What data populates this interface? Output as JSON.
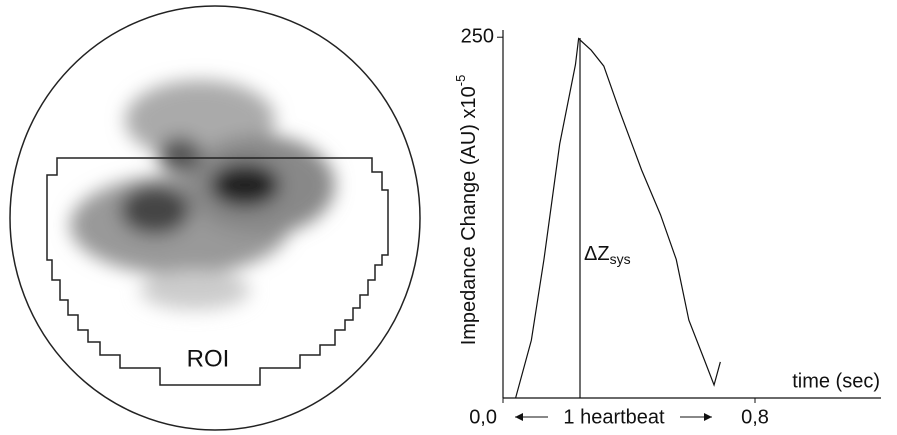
{
  "image": {
    "roi_label": "ROI"
  },
  "chart_data": {
    "type": "line",
    "y_label": "Impedance Change (AU) x10",
    "y_label_exponent": "-5",
    "x_label": "time (sec)",
    "annotation": "ΔZ",
    "annotation_subscript": "sys",
    "span_label": "1 heartbeat",
    "x": [
      0.04,
      0.09,
      0.13,
      0.18,
      0.23,
      0.24,
      0.28,
      0.32,
      0.37,
      0.44,
      0.5,
      0.55,
      0.59,
      0.64,
      0.67,
      0.69
    ],
    "series": [
      {
        "color": "#111111",
        "values": [
          0,
          40,
          96,
          176,
          231,
          249,
          241,
          230,
          199,
          158,
          127,
          96,
          54,
          26,
          9,
          25
        ]
      }
    ],
    "xlim": [
      0,
      1.2
    ],
    "ylim": [
      0,
      255
    ],
    "xticks": [
      {
        "value": 0,
        "label": "0,0"
      },
      {
        "value": 0.8,
        "label": "0,8"
      }
    ],
    "yticks": [
      250
    ]
  }
}
